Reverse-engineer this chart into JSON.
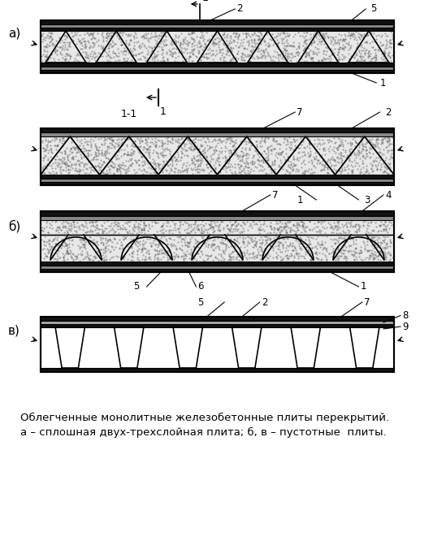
{
  "bg_color": "#ffffff",
  "line_color": "#000000",
  "concrete_color": "#e8e8e8",
  "dark_color": "#111111",
  "mid_color": "#555555",
  "caption_line1": "Облегченные монолитные железобетонные плиты перекрытий.",
  "caption_line2": "а – сплошная двух-трехслойная плита; б, в – пустотные  плиты.",
  "label_a": "а)",
  "label_b": "б)",
  "label_v": "в)",
  "fig_width": 5.33,
  "fig_height": 6.71
}
